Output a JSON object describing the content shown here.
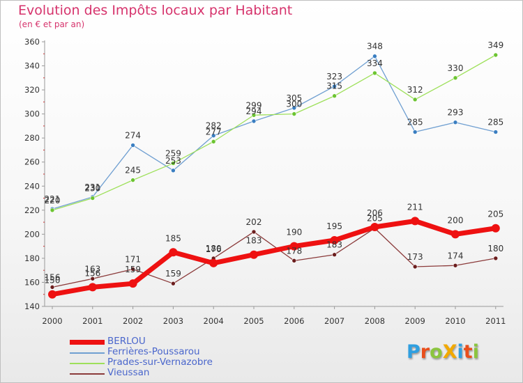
{
  "header": {
    "title": "Evolution des Impôts locaux par Habitant",
    "subtitle": "(en € et par an)"
  },
  "logo": {
    "text": "ProXiti",
    "colors": [
      "#2f9fe0",
      "#e94e1b",
      "#8bc53f",
      "#f2a900",
      "#2f9fe0",
      "#e94e1b",
      "#8bc53f"
    ]
  },
  "chart_data": {
    "type": "line",
    "title": "Evolution des Impôts locaux par Habitant",
    "subtitle": "(en € et par an)",
    "xlabel": "",
    "ylabel": "",
    "categories": [
      "2000",
      "2001",
      "2002",
      "2003",
      "2004",
      "2005",
      "2006",
      "2007",
      "2008",
      "2009",
      "2010",
      "2011"
    ],
    "ylim": [
      140,
      360
    ],
    "yticks": [
      140,
      160,
      180,
      200,
      220,
      240,
      260,
      280,
      300,
      320,
      340,
      360
    ],
    "grid": false,
    "legend_position": "bottom-left",
    "series": [
      {
        "name": "Ferrières-Poussarou",
        "values": [
          221,
          231,
          274,
          253,
          282,
          294,
          305,
          323,
          348,
          285,
          293,
          285
        ],
        "color": "#6f9fd1",
        "marker": "#3a7ec1",
        "width": 1.3
      },
      {
        "name": "Prades-sur-Vernazobre",
        "values": [
          220,
          230,
          245,
          259,
          277,
          299,
          300,
          315,
          334,
          312,
          330,
          349
        ],
        "color": "#9ee05a",
        "marker": "#6cc431",
        "width": 1.3
      },
      {
        "name": "Vieussan",
        "values": [
          156,
          163,
          171,
          159,
          180,
          202,
          178,
          183,
          205,
          173,
          174,
          180
        ],
        "color": "#8b3a3a",
        "marker": "#6b1d1d",
        "width": 1.3
      },
      {
        "name": "BERLOU",
        "values": [
          150,
          156,
          159,
          185,
          176,
          183,
          190,
          195,
          206,
          211,
          200,
          205
        ],
        "color": "#ee1111",
        "marker": "#ee1111",
        "width": 7
      }
    ]
  },
  "legend": [
    {
      "name": "BERLOU",
      "color": "#ee1111"
    },
    {
      "name": "Ferrières-Poussarou",
      "color": "#6f9fd1"
    },
    {
      "name": "Prades-sur-Vernazobre",
      "color": "#9ee05a"
    },
    {
      "name": "Vieussan",
      "color": "#8b3a3a"
    }
  ]
}
